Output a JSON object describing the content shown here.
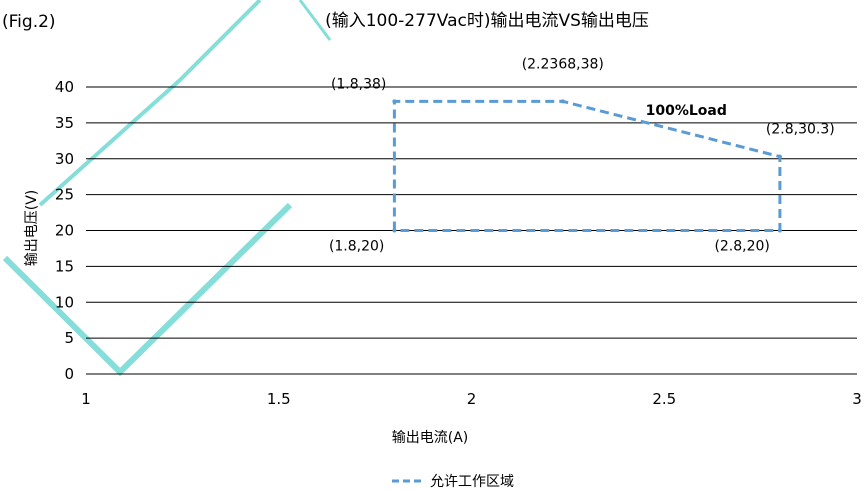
{
  "fig_label": "(Fig.2)",
  "chart_data": {
    "type": "line",
    "title": "(输入100-277Vac时)输出电流VS输出电压",
    "xlabel": "输出电流(A)",
    "ylabel": "输出电压(V)",
    "xlim": [
      1,
      3
    ],
    "ylim": [
      0,
      40
    ],
    "x_ticks": [
      1,
      1.5,
      2,
      2.5,
      3
    ],
    "x_tick_labels": [
      "1",
      "1.5",
      "2",
      "2.5",
      "3"
    ],
    "y_ticks": [
      0,
      5,
      10,
      15,
      20,
      25,
      30,
      35,
      40
    ],
    "y_tick_labels": [
      "0",
      "5",
      "10",
      "15",
      "20",
      "25",
      "30",
      "35",
      "40"
    ],
    "grid": "horizontal",
    "legend_position": "bottom",
    "series": [
      {
        "name": "允许工作区域",
        "style": "dashed",
        "color": "#5b9bd5",
        "points": [
          {
            "x": 1.8,
            "y": 20
          },
          {
            "x": 1.8,
            "y": 38
          },
          {
            "x": 2.2368,
            "y": 38
          },
          {
            "x": 2.8,
            "y": 30.3
          },
          {
            "x": 2.8,
            "y": 20
          },
          {
            "x": 1.8,
            "y": 20
          }
        ]
      }
    ],
    "annotations": [
      {
        "text": "(1.8,38)",
        "x": 1.8,
        "y": 38,
        "anchor": "above-left"
      },
      {
        "text": "(2.2368,38)",
        "x": 2.2368,
        "y": 38,
        "anchor": "top"
      },
      {
        "text": "100%Load",
        "x": 2.5,
        "y": 35,
        "anchor": "above",
        "bold": true
      },
      {
        "text": "(2.8,30.3)",
        "x": 2.8,
        "y": 30.3,
        "anchor": "above-right"
      },
      {
        "text": "(1.8,20)",
        "x": 1.8,
        "y": 20,
        "anchor": "below-left"
      },
      {
        "text": "(2.8,20)",
        "x": 2.8,
        "y": 20,
        "anchor": "below-left"
      }
    ]
  }
}
